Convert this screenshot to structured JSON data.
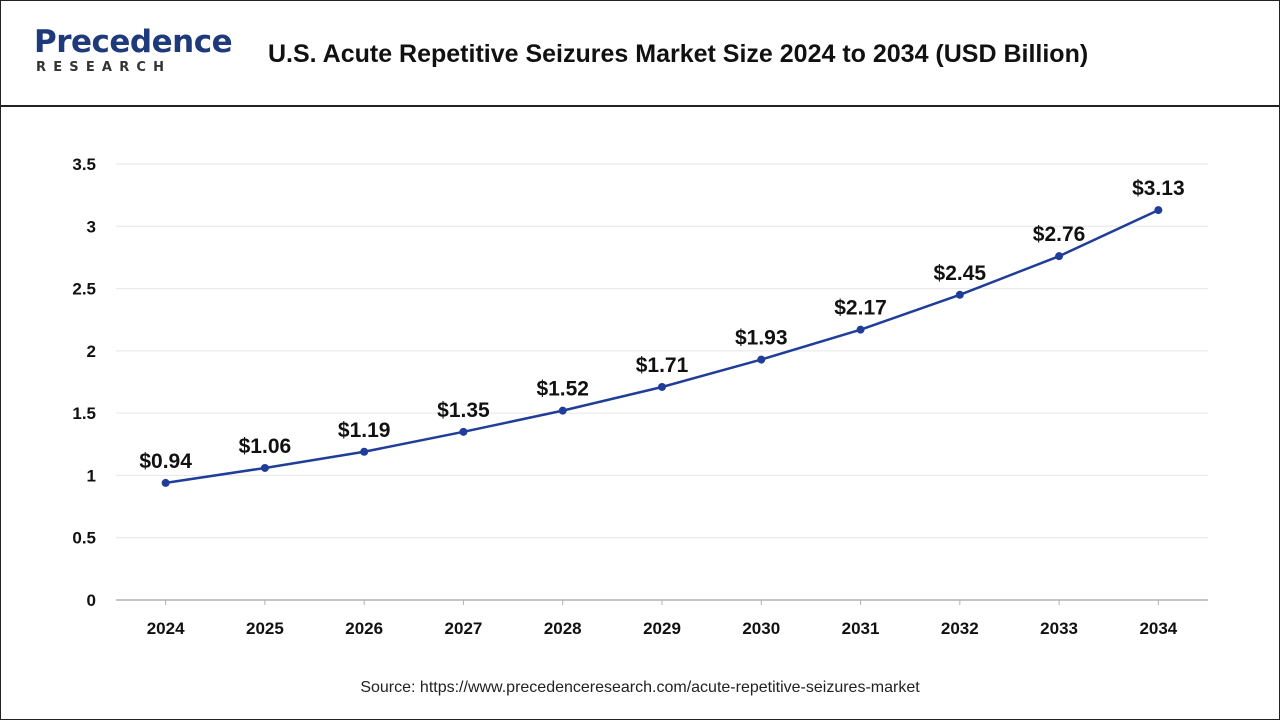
{
  "header": {
    "logo_main": "Precedence",
    "logo_sub": "RESEARCH",
    "title": "U.S. Acute Repetitive Seizures Market Size 2024 to 2034 (USD Billion)"
  },
  "source": "Source: https://www.precedenceresearch.com/acute-repetitive-seizures-market",
  "colors": {
    "line": "#1f3d99",
    "grid": "#e6e6e6",
    "axis": "#b0b0b0",
    "text": "#111111"
  },
  "chart_data": {
    "type": "line",
    "title": "U.S. Acute Repetitive Seizures Market Size 2024 to 2034 (USD Billion)",
    "xlabel": "",
    "ylabel": "",
    "categories": [
      "2024",
      "2025",
      "2026",
      "2027",
      "2028",
      "2029",
      "2030",
      "2031",
      "2032",
      "2033",
      "2034"
    ],
    "values": [
      0.94,
      1.06,
      1.19,
      1.35,
      1.52,
      1.71,
      1.93,
      2.17,
      2.45,
      2.76,
      3.13
    ],
    "data_labels": [
      "$0.94",
      "$1.06",
      "$1.19",
      "$1.35",
      "$1.52",
      "$1.71",
      "$1.93",
      "$2.17",
      "$2.45",
      "$2.76",
      "$3.13"
    ],
    "ylim": [
      0,
      3.5
    ],
    "yticks": [
      "0",
      "0.5",
      "1",
      "1.5",
      "2",
      "2.5",
      "3",
      "3.5"
    ],
    "grid": true
  }
}
